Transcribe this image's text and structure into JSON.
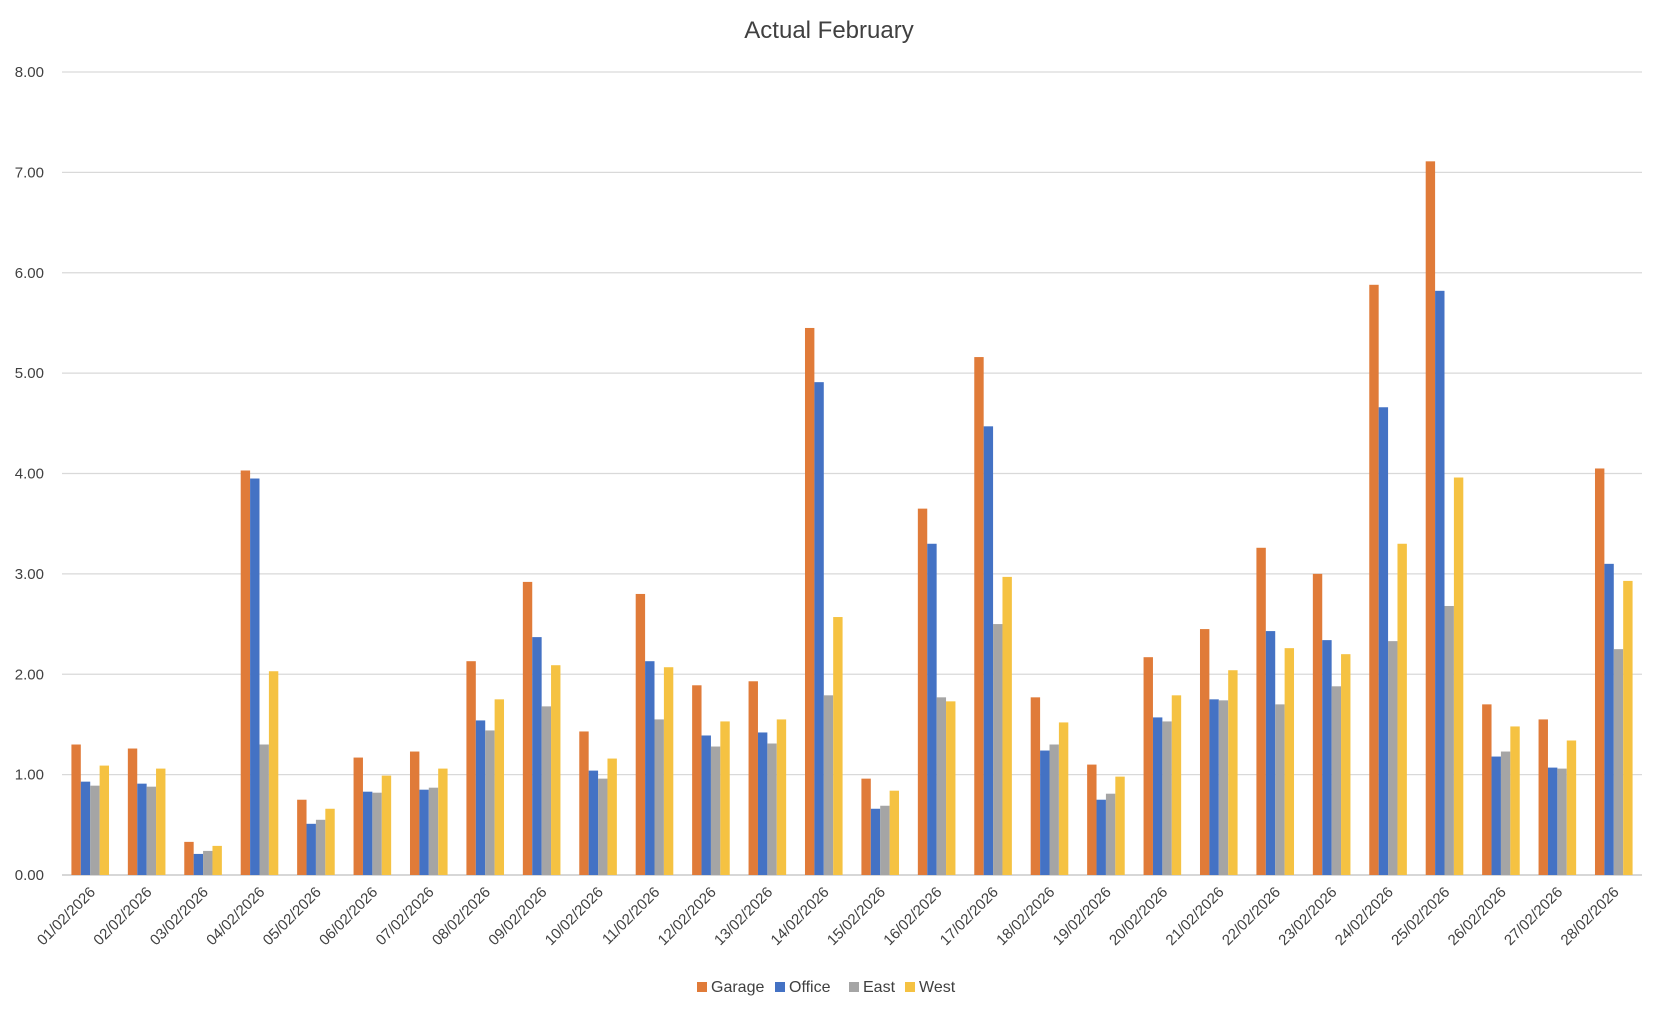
{
  "chart_data": {
    "type": "bar",
    "title": "Actual February",
    "xlabel": "",
    "ylabel": "",
    "ylim": [
      0,
      8
    ],
    "yticks": [
      "0.00",
      "1.00",
      "2.00",
      "3.00",
      "4.00",
      "5.00",
      "6.00",
      "7.00",
      "8.00"
    ],
    "grid": true,
    "legend_position": "bottom",
    "categories": [
      "01/02/2026",
      "02/02/2026",
      "03/02/2026",
      "04/02/2026",
      "05/02/2026",
      "06/02/2026",
      "07/02/2026",
      "08/02/2026",
      "09/02/2026",
      "10/02/2026",
      "11/02/2026",
      "12/02/2026",
      "13/02/2026",
      "14/02/2026",
      "15/02/2026",
      "16/02/2026",
      "17/02/2026",
      "18/02/2026",
      "19/02/2026",
      "20/02/2026",
      "21/02/2026",
      "22/02/2026",
      "23/02/2026",
      "24/02/2026",
      "25/02/2026",
      "26/02/2026",
      "27/02/2026",
      "28/02/2026"
    ],
    "series": [
      {
        "name": "Garage",
        "color": "#E07B39",
        "values": [
          1.3,
          1.26,
          0.33,
          4.03,
          0.75,
          1.17,
          1.23,
          2.13,
          2.92,
          1.43,
          2.8,
          1.89,
          1.93,
          5.45,
          0.96,
          3.65,
          5.16,
          1.77,
          1.1,
          2.17,
          2.45,
          3.26,
          3.0,
          5.88,
          7.11,
          1.7,
          1.55,
          4.05
        ]
      },
      {
        "name": "Office",
        "color": "#4472C4",
        "values": [
          0.93,
          0.91,
          0.21,
          3.95,
          0.51,
          0.83,
          0.85,
          1.54,
          2.37,
          1.04,
          2.13,
          1.39,
          1.42,
          4.91,
          0.66,
          3.3,
          4.47,
          1.24,
          0.75,
          1.57,
          1.75,
          2.43,
          2.34,
          4.66,
          5.82,
          1.18,
          1.07,
          3.1
        ]
      },
      {
        "name": "East",
        "color": "#A5A5A5",
        "values": [
          0.89,
          0.88,
          0.24,
          1.3,
          0.55,
          0.82,
          0.87,
          1.44,
          1.68,
          0.96,
          1.55,
          1.28,
          1.31,
          1.79,
          0.69,
          1.77,
          2.5,
          1.3,
          0.81,
          1.53,
          1.74,
          1.7,
          1.88,
          2.33,
          2.68,
          1.23,
          1.06,
          2.25
        ]
      },
      {
        "name": "West",
        "color": "#F5C242",
        "values": [
          1.09,
          1.06,
          0.29,
          2.03,
          0.66,
          0.99,
          1.06,
          1.75,
          2.09,
          1.16,
          2.07,
          1.53,
          1.55,
          2.57,
          0.84,
          1.73,
          2.97,
          1.52,
          0.98,
          1.79,
          2.04,
          2.26,
          2.2,
          3.3,
          3.96,
          1.48,
          1.34,
          2.93
        ]
      }
    ]
  }
}
